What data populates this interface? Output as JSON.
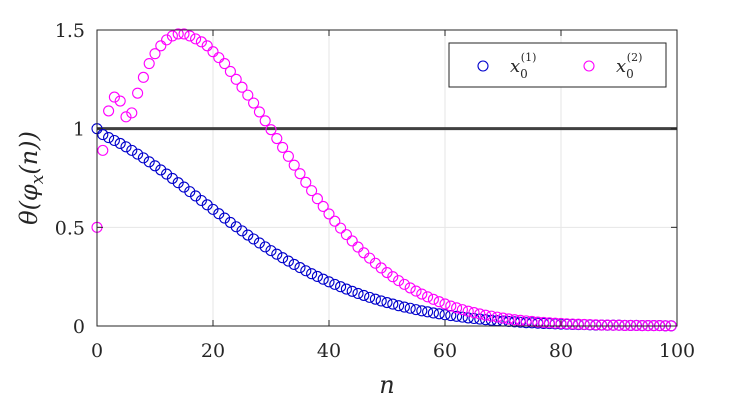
{
  "chart_data": {
    "type": "scatter",
    "xlabel": "n",
    "ylabel": "θ(φ_x(n))",
    "xlim": [
      0,
      100
    ],
    "ylim": [
      0,
      1.5
    ],
    "xticks": [
      0,
      20,
      40,
      60,
      80,
      100
    ],
    "yticks": [
      0,
      0.5,
      1,
      1.5
    ],
    "xtick_labels": [
      "0",
      "20",
      "40",
      "60",
      "80",
      "100"
    ],
    "ytick_labels": [
      "0",
      "0.5",
      "1",
      "1.5"
    ],
    "grid": true,
    "legend_position": "top-right",
    "reference_line": {
      "y": 1,
      "color": "#404040"
    },
    "series": [
      {
        "name": "x_0^(1)",
        "color": "#0000cc",
        "marker": "circle-open",
        "x": [
          0,
          1,
          2,
          3,
          4,
          5,
          6,
          7,
          8,
          9,
          10,
          11,
          12,
          13,
          14,
          15,
          16,
          17,
          18,
          19,
          20,
          21,
          22,
          23,
          24,
          25,
          26,
          27,
          28,
          29,
          30,
          31,
          32,
          33,
          34,
          35,
          36,
          37,
          38,
          39,
          40,
          41,
          42,
          43,
          44,
          45,
          46,
          47,
          48,
          49,
          50,
          51,
          52,
          53,
          54,
          55,
          56,
          57,
          58,
          59,
          60,
          61,
          62,
          63,
          64,
          65,
          66,
          67,
          68,
          69,
          70,
          71,
          72,
          73,
          74,
          75,
          76,
          77,
          78,
          79,
          80,
          81,
          82,
          83,
          84,
          85,
          86,
          87,
          88,
          89,
          90,
          91,
          92,
          93,
          94,
          95,
          96,
          97,
          98,
          99
        ],
        "values": [
          1.0,
          0.97,
          0.955,
          0.94,
          0.925,
          0.908,
          0.89,
          0.871,
          0.852,
          0.832,
          0.812,
          0.791,
          0.77,
          0.748,
          0.726,
          0.704,
          0.681,
          0.659,
          0.636,
          0.614,
          0.591,
          0.569,
          0.547,
          0.525,
          0.503,
          0.482,
          0.461,
          0.441,
          0.421,
          0.401,
          0.382,
          0.364,
          0.346,
          0.329,
          0.312,
          0.296,
          0.28,
          0.265,
          0.251,
          0.237,
          0.224,
          0.211,
          0.199,
          0.187,
          0.176,
          0.165,
          0.155,
          0.145,
          0.136,
          0.127,
          0.119,
          0.111,
          0.103,
          0.096,
          0.09,
          0.083,
          0.077,
          0.072,
          0.066,
          0.062,
          0.057,
          0.053,
          0.049,
          0.045,
          0.041,
          0.038,
          0.035,
          0.032,
          0.029,
          0.027,
          0.025,
          0.023,
          0.021,
          0.019,
          0.017,
          0.016,
          0.014,
          0.013,
          0.012,
          0.011,
          0.01,
          0.009,
          0.008,
          0.007,
          0.007,
          0.006,
          0.005,
          0.005,
          0.004,
          0.004,
          0.004,
          0.003,
          0.003,
          0.003,
          0.002,
          0.002,
          0.002,
          0.002,
          0.001,
          0.001
        ]
      },
      {
        "name": "x_0^(2)",
        "color": "#ff00ff",
        "marker": "circle-open",
        "x": [
          0,
          1,
          2,
          3,
          4,
          5,
          6,
          7,
          8,
          9,
          10,
          11,
          12,
          13,
          14,
          15,
          16,
          17,
          18,
          19,
          20,
          21,
          22,
          23,
          24,
          25,
          26,
          27,
          28,
          29,
          30,
          31,
          32,
          33,
          34,
          35,
          36,
          37,
          38,
          39,
          40,
          41,
          42,
          43,
          44,
          45,
          46,
          47,
          48,
          49,
          50,
          51,
          52,
          53,
          54,
          55,
          56,
          57,
          58,
          59,
          60,
          61,
          62,
          63,
          64,
          65,
          66,
          67,
          68,
          69,
          70,
          71,
          72,
          73,
          74,
          75,
          76,
          77,
          78,
          79,
          80,
          81,
          82,
          83,
          84,
          85,
          86,
          87,
          88,
          89,
          90,
          91,
          92,
          93,
          94,
          95,
          96,
          97,
          98,
          99
        ],
        "values": [
          0.5,
          0.89,
          1.09,
          1.16,
          1.14,
          1.06,
          1.08,
          1.18,
          1.26,
          1.33,
          1.38,
          1.42,
          1.45,
          1.47,
          1.48,
          1.48,
          1.47,
          1.455,
          1.44,
          1.42,
          1.39,
          1.36,
          1.33,
          1.29,
          1.25,
          1.21,
          1.17,
          1.13,
          1.085,
          1.04,
          0.995,
          0.95,
          0.905,
          0.86,
          0.815,
          0.772,
          0.728,
          0.686,
          0.645,
          0.606,
          0.568,
          0.531,
          0.496,
          0.463,
          0.431,
          0.4,
          0.371,
          0.344,
          0.318,
          0.294,
          0.271,
          0.25,
          0.23,
          0.211,
          0.193,
          0.177,
          0.162,
          0.148,
          0.135,
          0.123,
          0.112,
          0.101,
          0.092,
          0.083,
          0.075,
          0.068,
          0.061,
          0.055,
          0.05,
          0.045,
          0.04,
          0.036,
          0.032,
          0.029,
          0.026,
          0.023,
          0.02,
          0.018,
          0.016,
          0.014,
          0.013,
          0.011,
          0.01,
          0.009,
          0.008,
          0.007,
          0.006,
          0.005,
          0.005,
          0.004,
          0.004,
          0.003,
          0.003,
          0.003,
          0.002,
          0.002,
          0.002,
          0.002,
          0.001,
          0.001
        ]
      }
    ]
  }
}
